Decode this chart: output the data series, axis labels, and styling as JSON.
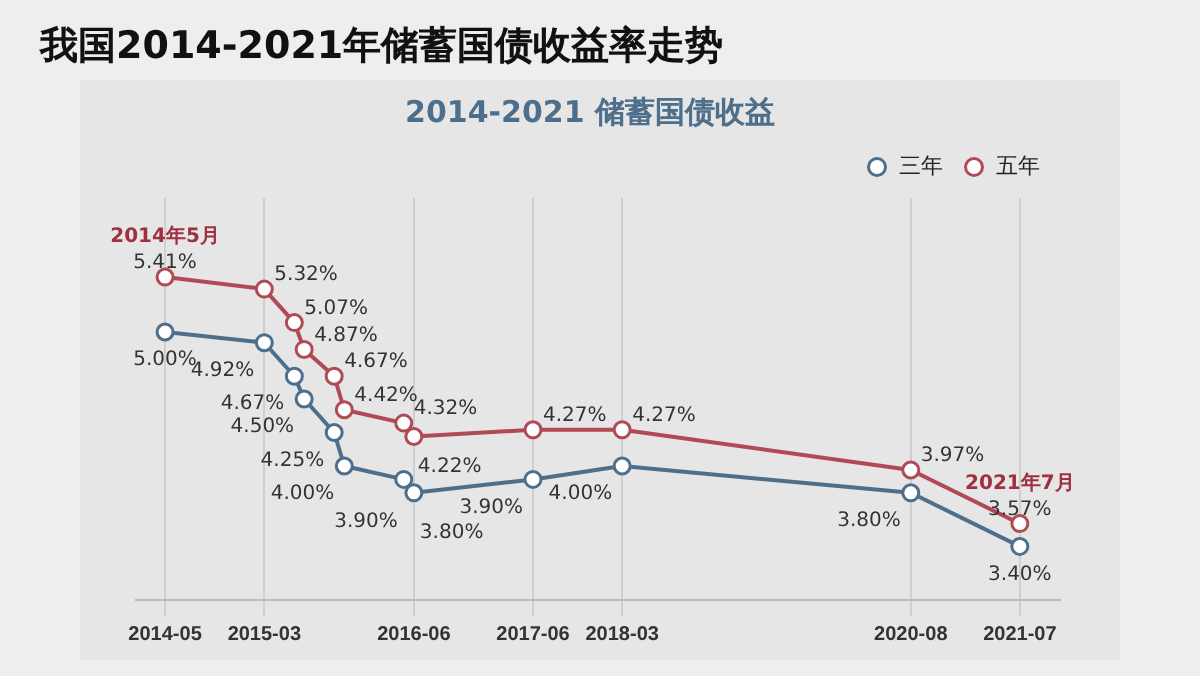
{
  "chart_data": {
    "type": "line",
    "title": "我国2014-2021年储蓄国债收益率走势",
    "subtitle": "2014-2021 储蓄国债收益",
    "x": [
      "2014-05",
      "2015-03",
      "2015-06",
      "2015-07",
      "2015-10",
      "2015-11",
      "2016-05",
      "2016-06",
      "2017-06",
      "2018-03",
      "2020-08",
      "2021-07"
    ],
    "series": [
      {
        "name": "三年",
        "color": "#4d6f8c",
        "values": [
          5.0,
          4.92,
          4.67,
          4.5,
          4.25,
          4.0,
          3.9,
          3.8,
          3.9,
          4.0,
          3.8,
          3.4
        ],
        "value_labels": [
          "5.00%",
          "4.92%",
          "4.67%",
          "4.50%",
          "4.25%",
          "4.00%",
          "3.90%",
          "3.80%",
          "3.90%",
          "4.00%",
          "3.80%",
          "3.40%"
        ]
      },
      {
        "name": "五年",
        "color": "#b04a55",
        "values": [
          5.41,
          5.32,
          5.07,
          4.87,
          4.67,
          4.42,
          4.32,
          4.22,
          4.27,
          4.27,
          3.97,
          3.57
        ],
        "value_labels": [
          "5.41%",
          "5.32%",
          "5.07%",
          "4.87%",
          "4.67%",
          "4.42%",
          "4.32%",
          "4.22%",
          "4.27%",
          "4.27%",
          "3.97%",
          "3.57%"
        ]
      }
    ],
    "xlim": [
      "2014-02",
      "2021-11"
    ],
    "xticks": [
      "2014-05",
      "2015-03",
      "2016-06",
      "2017-06",
      "2018-03",
      "2020-08",
      "2021-07"
    ],
    "annotations": [
      {
        "text": "2014年5月",
        "x": "2014-05",
        "y": 5.41
      },
      {
        "text": "2021年7月",
        "x": "2021-07",
        "y": 3.57
      }
    ],
    "legend": "top right",
    "grid": "x",
    "marker": "circle",
    "line_style": "solid",
    "tick_labels": "x"
  }
}
